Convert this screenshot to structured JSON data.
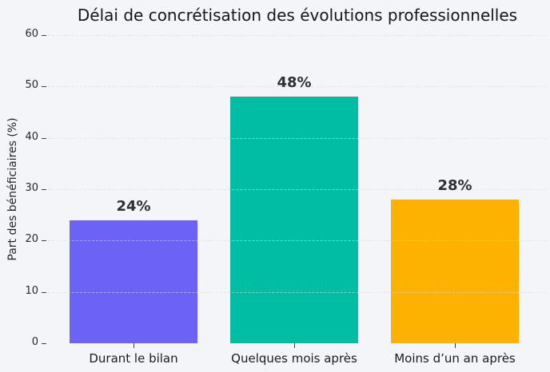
{
  "chart_data": {
    "type": "bar",
    "title": "Délai de concrétisation des évolutions professionnelles",
    "xlabel": "",
    "ylabel": "Part des bénéficiaires (%)",
    "categories": [
      "Durant le bilan",
      "Quelques mois après",
      "Moins d’un an après"
    ],
    "values": [
      24,
      48,
      28
    ],
    "value_labels": [
      "24%",
      "48%",
      "28%"
    ],
    "bar_colors": [
      "#6C63F6",
      "#00BDA4",
      "#FDB202"
    ],
    "ylim": [
      0,
      60
    ],
    "yticks": [
      0,
      10,
      20,
      30,
      40,
      50,
      60
    ],
    "grid": "horizontal-dashed",
    "legend_position": "none",
    "background_color": "#F4F5F9",
    "title_color": "#15151D",
    "label_color": "#2E2E36"
  }
}
